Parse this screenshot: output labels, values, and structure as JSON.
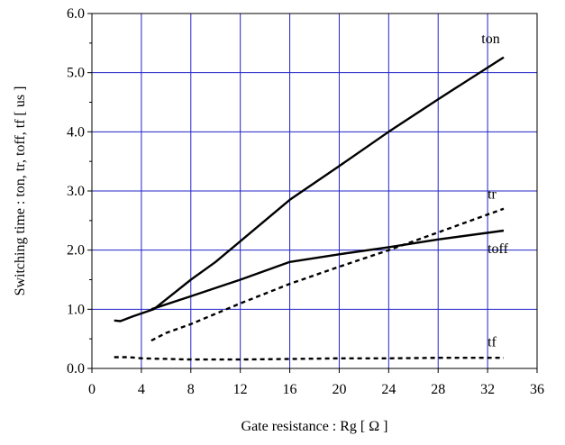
{
  "chart_data": {
    "type": "line",
    "xlabel": "Gate resistance  :  Rg  [ Ω ]",
    "ylabel": "Switching time  :  ton, tr, toff, tf  [ us ]",
    "xlim": [
      0,
      36
    ],
    "ylim": [
      0.0,
      6.0
    ],
    "x_ticks": [
      "0",
      "4",
      "8",
      "12",
      "16",
      "20",
      "24",
      "28",
      "32",
      "36"
    ],
    "y_ticks": [
      "0.0",
      "1.0",
      "2.0",
      "3.0",
      "4.0",
      "5.0",
      "6.0"
    ],
    "grid": true,
    "grid_color": "#2323c8",
    "series": [
      {
        "name": "ton",
        "style": "solid",
        "label_at": [
          31.5,
          5.5
        ],
        "points": [
          [
            1.8,
            0.81
          ],
          [
            2.3,
            0.8
          ],
          [
            3.3,
            0.88
          ],
          [
            5.0,
            1.0
          ],
          [
            6.5,
            1.25
          ],
          [
            8.0,
            1.5
          ],
          [
            10.0,
            1.8
          ],
          [
            12.0,
            2.15
          ],
          [
            16.0,
            2.85
          ],
          [
            20.0,
            3.42
          ],
          [
            24.0,
            4.0
          ],
          [
            28.0,
            4.55
          ],
          [
            33.3,
            5.26
          ]
        ]
      },
      {
        "name": "tr",
        "style": "dashed",
        "label_at": [
          32.0,
          2.87
        ],
        "points": [
          [
            4.8,
            0.47
          ],
          [
            6.0,
            0.6
          ],
          [
            8.0,
            0.75
          ],
          [
            12.0,
            1.1
          ],
          [
            16.0,
            1.43
          ],
          [
            20.0,
            1.72
          ],
          [
            24.0,
            2.0
          ],
          [
            28.0,
            2.3
          ],
          [
            33.3,
            2.7
          ]
        ]
      },
      {
        "name": "toff",
        "style": "solid",
        "label_at": [
          32.0,
          1.95
        ],
        "points": [
          [
            4.8,
            1.0
          ],
          [
            8.0,
            1.22
          ],
          [
            12.0,
            1.5
          ],
          [
            16.0,
            1.8
          ],
          [
            20.0,
            1.93
          ],
          [
            24.0,
            2.05
          ],
          [
            28.0,
            2.18
          ],
          [
            33.3,
            2.33
          ]
        ]
      },
      {
        "name": "tf",
        "style": "dashed",
        "label_at": [
          32.0,
          0.37
        ],
        "points": [
          [
            1.8,
            0.19
          ],
          [
            3.0,
            0.19
          ],
          [
            4.0,
            0.17
          ],
          [
            8.0,
            0.15
          ],
          [
            12.0,
            0.15
          ],
          [
            16.0,
            0.16
          ],
          [
            20.0,
            0.17
          ],
          [
            24.0,
            0.17
          ],
          [
            28.0,
            0.18
          ],
          [
            33.3,
            0.18
          ]
        ]
      }
    ]
  }
}
